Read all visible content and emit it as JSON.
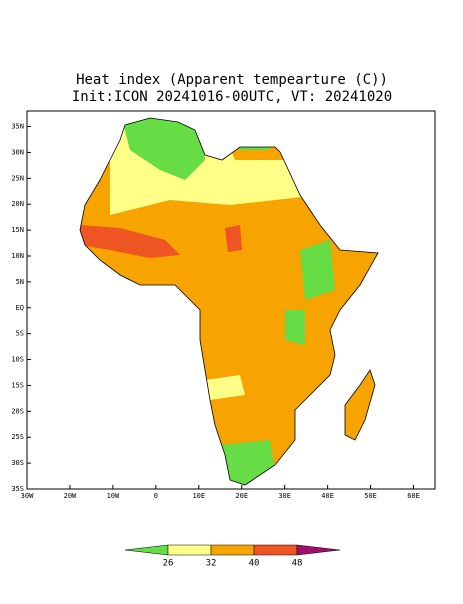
{
  "chart_data": {
    "type": "map",
    "title": "Heat index (Apparent tempearture (C))",
    "subtitle": "Init:ICON 20241016-00UTC, VT: 20241020",
    "xlim": [
      -30,
      65
    ],
    "ylim": [
      -35,
      38
    ],
    "xticks": [
      {
        "value": -30,
        "label": "30W"
      },
      {
        "value": -20,
        "label": "20W"
      },
      {
        "value": -10,
        "label": "10W"
      },
      0,
      {
        "value": 10,
        "label": "10E"
      },
      {
        "value": 20,
        "label": "20E"
      },
      {
        "value": 30,
        "label": "30E"
      },
      {
        "value": 40,
        "label": "40E"
      },
      {
        "value": 50,
        "label": "50E"
      },
      {
        "value": 60,
        "label": "60E"
      }
    ],
    "yticks": [
      {
        "value": -35,
        "label": "35S"
      },
      {
        "value": -30,
        "label": "30S"
      },
      {
        "value": -25,
        "label": "25S"
      },
      {
        "value": -20,
        "label": "20S"
      },
      {
        "value": -15,
        "label": "15S"
      },
      {
        "value": -10,
        "label": "10S"
      },
      {
        "value": -5,
        "label": "5S"
      },
      {
        "value": 0,
        "label": "EQ"
      },
      {
        "value": 5,
        "label": "5N"
      },
      {
        "value": 10,
        "label": "10N"
      },
      {
        "value": 15,
        "label": "15N"
      },
      {
        "value": 20,
        "label": "20N"
      },
      {
        "value": 25,
        "label": "25N"
      },
      {
        "value": 30,
        "label": "30N"
      },
      {
        "value": 35,
        "label": "35N"
      }
    ],
    "colorbar": {
      "levels": [
        26,
        32,
        40,
        48
      ],
      "colors": [
        "#66dd44",
        "#ffff88",
        "#f7a400",
        "#ee5522",
        "#a0106a"
      ]
    }
  }
}
